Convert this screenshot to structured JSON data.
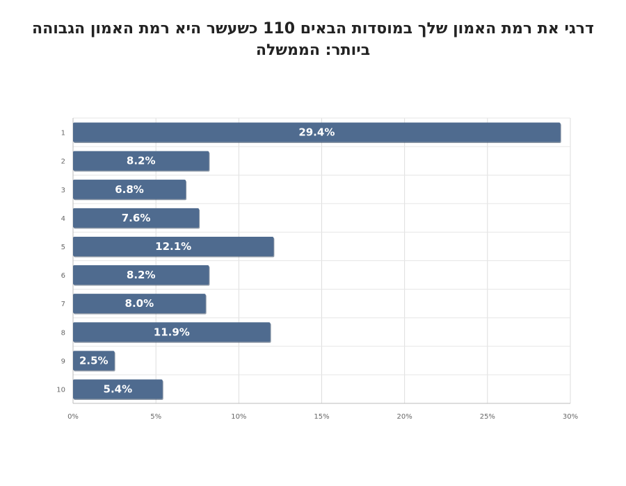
{
  "chart_data": {
    "type": "bar",
    "orientation": "horizontal",
    "title_lines": [
      "דרגי את רמת האמון שלך במוסדות הבאים 110 כשעשר היא רמת האמון הגבוהה",
      "ביותר: הממשלה"
    ],
    "categories": [
      "1",
      "2",
      "3",
      "4",
      "5",
      "6",
      "7",
      "8",
      "9",
      "10"
    ],
    "values": [
      29.4,
      8.2,
      6.8,
      7.6,
      12.1,
      8.2,
      8.0,
      11.9,
      2.5,
      5.4
    ],
    "data_labels": [
      "29.4%",
      "8.2%",
      "6.8%",
      "7.6%",
      "12.1%",
      "8.2%",
      "8.0%",
      "11.9%",
      "2.5%",
      "5.4%"
    ],
    "xlim": [
      0,
      30
    ],
    "x_ticks": [
      0,
      5,
      10,
      15,
      20,
      25,
      30
    ],
    "x_tick_labels": [
      "0%",
      "5%",
      "10%",
      "15%",
      "20%",
      "25%",
      "30%"
    ],
    "grid": true,
    "legend": "none",
    "bar_color": "#4f6b8f"
  }
}
